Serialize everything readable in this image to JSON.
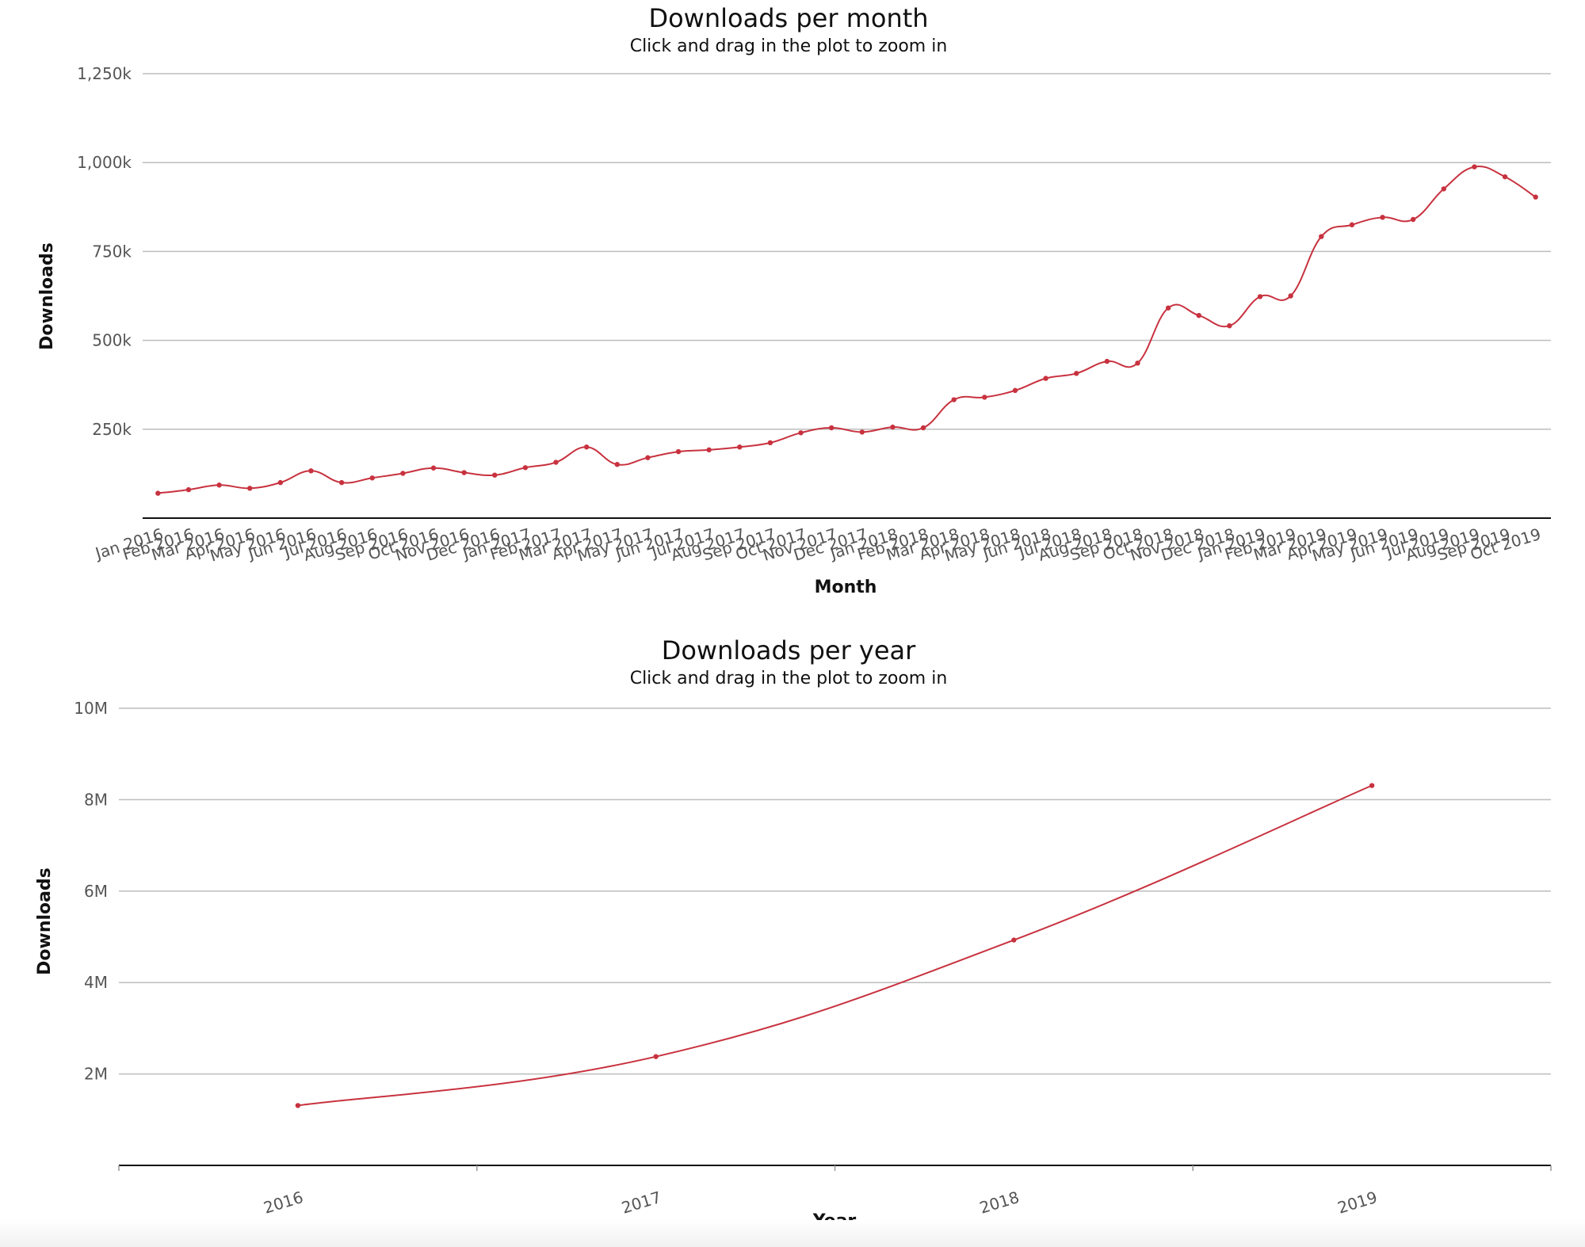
{
  "chart_data": [
    {
      "type": "line",
      "title": "Downloads per month",
      "subtitle": "Click and drag in the plot to zoom in",
      "xlabel": "Month",
      "ylabel": "Downloads",
      "ylim": [
        0,
        1250000
      ],
      "yticks": [
        250000,
        500000,
        750000,
        1000000,
        1250000
      ],
      "ytick_labels": [
        "250k",
        "500k",
        "750k",
        "1,000k",
        "1,250k"
      ],
      "grid": true,
      "line_color": "#c8323f",
      "categories": [
        "Jan 2016",
        "Feb 2016",
        "Mar 2016",
        "Apr 2016",
        "May 2016",
        "Jun 2016",
        "Jul 2016",
        "Aug 2016",
        "Sep 2016",
        "Oct 2016",
        "Nov 2016",
        "Dec 2016",
        "Jan 2017",
        "Feb 2017",
        "Mar 2017",
        "Apr 2017",
        "May 2017",
        "Jun 2017",
        "Jul 2017",
        "Aug 2017",
        "Sep 2017",
        "Oct 2017",
        "Nov 2017",
        "Dec 2017",
        "Jan 2018",
        "Feb 2018",
        "Mar 2018",
        "Apr 2018",
        "May 2018",
        "Jun 2018",
        "Jul 2018",
        "Aug 2018",
        "Sep 2018",
        "Oct 2018",
        "Nov 2018",
        "Dec 2018",
        "Jan 2019",
        "Feb 2019",
        "Mar 2019",
        "Apr 2019",
        "May 2019",
        "Jun 2019",
        "Jul 2019",
        "Aug 2019",
        "Sep 2019",
        "Oct 2019"
      ],
      "values": [
        70000,
        80000,
        93000,
        84000,
        100000,
        133000,
        100000,
        113000,
        126000,
        141000,
        128000,
        121000,
        142000,
        157000,
        200000,
        151000,
        170000,
        187000,
        192000,
        200000,
        212000,
        240000,
        254000,
        242000,
        256000,
        254000,
        333000,
        340000,
        359000,
        393000,
        407000,
        441000,
        436000,
        591000,
        570000,
        541000,
        623000,
        625000,
        792000,
        825000,
        846000,
        840000,
        926000,
        988000,
        960000,
        903000
      ]
    },
    {
      "type": "line",
      "title": "Downloads per year",
      "subtitle": "Click and drag in the plot to zoom in",
      "xlabel": "Year",
      "ylabel": "Downloads",
      "ylim": [
        0,
        10000000
      ],
      "yticks": [
        2000000,
        4000000,
        6000000,
        8000000,
        10000000
      ],
      "ytick_labels": [
        "2M",
        "4M",
        "6M",
        "8M",
        "10M"
      ],
      "grid": true,
      "line_color": "#c8323f",
      "categories": [
        "2016",
        "2017",
        "2018",
        "2019"
      ],
      "values": [
        1310000,
        2380000,
        4930000,
        8310000
      ]
    }
  ]
}
